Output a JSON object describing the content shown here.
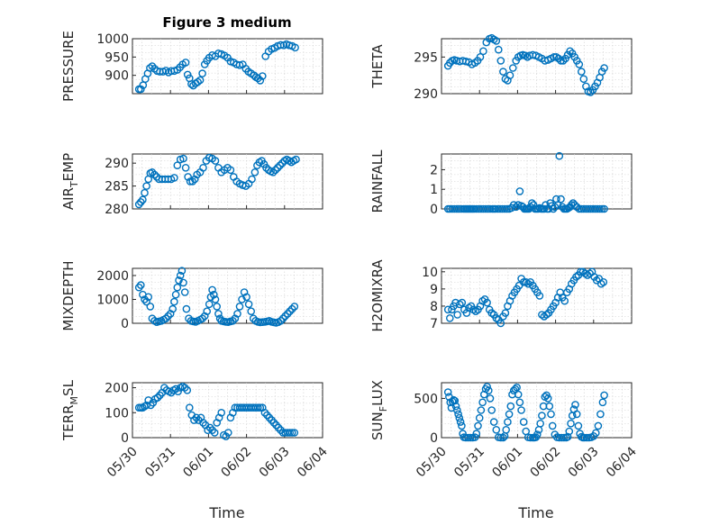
{
  "figure": {
    "title": "Figure 3 medium",
    "marker_color": "#0072BD",
    "grid": "on (dotted, major + minor)",
    "xlabel": "Time"
  },
  "chart_data": [
    {
      "type": "scatter",
      "name": "pressure",
      "title": "Figure 3 medium",
      "ylabel": "PRESSURE",
      "xlabel": "",
      "ylim": [
        850,
        1000
      ],
      "yticks": [
        900,
        950,
        1000
      ],
      "xlim": [
        0,
        5
      ],
      "xticks": [],
      "x": [
        0.17,
        0.22,
        0.28,
        0.34,
        0.4,
        0.46,
        0.52,
        0.58,
        0.65,
        0.72,
        0.8,
        0.88,
        0.95,
        1.02,
        1.1,
        1.18,
        1.25,
        1.32,
        1.4,
        1.45,
        1.5,
        1.55,
        1.6,
        1.66,
        1.72,
        1.78,
        1.84,
        1.9,
        1.96,
        2.02,
        2.1,
        2.18,
        2.26,
        2.34,
        2.42,
        2.5,
        2.58,
        2.66,
        2.74,
        2.82,
        2.9,
        2.98,
        3.05,
        3.12,
        3.2,
        3.25,
        3.3,
        3.36,
        3.42,
        3.5,
        3.58,
        3.66,
        3.74,
        3.82,
        3.9,
        3.98,
        4.05,
        4.12,
        4.2,
        4.28
      ],
      "y": [
        862,
        862,
        873,
        890,
        905,
        920,
        925,
        918,
        912,
        910,
        910,
        913,
        908,
        912,
        912,
        915,
        922,
        930,
        935,
        902,
        892,
        876,
        872,
        878,
        882,
        887,
        905,
        930,
        940,
        948,
        955,
        952,
        960,
        958,
        954,
        948,
        938,
        935,
        930,
        928,
        930,
        918,
        910,
        905,
        900,
        895,
        892,
        886,
        898,
        952,
        965,
        972,
        975,
        980,
        983,
        982,
        985,
        982,
        980,
        976
      ]
    },
    {
      "type": "scatter",
      "name": "theta",
      "title": "",
      "ylabel": "THETA",
      "xlabel": "",
      "ylim": [
        290,
        297.5
      ],
      "yticks": [
        290,
        295
      ],
      "xlim": [
        0,
        5
      ],
      "xticks": [],
      "x": [
        0.17,
        0.22,
        0.28,
        0.34,
        0.4,
        0.48,
        0.56,
        0.64,
        0.72,
        0.8,
        0.88,
        0.95,
        1.02,
        1.1,
        1.18,
        1.26,
        1.32,
        1.38,
        1.44,
        1.5,
        1.56,
        1.62,
        1.68,
        1.74,
        1.8,
        1.88,
        1.96,
        2.02,
        2.08,
        2.14,
        2.2,
        2.26,
        2.32,
        2.4,
        2.48,
        2.56,
        2.64,
        2.72,
        2.8,
        2.88,
        2.96,
        3.02,
        3.08,
        3.14,
        3.2,
        3.26,
        3.32,
        3.38,
        3.44,
        3.5,
        3.56,
        3.62,
        3.68,
        3.74,
        3.8,
        3.86,
        3.92,
        3.98,
        4.04,
        4.1,
        4.16,
        4.22,
        4.28
      ],
      "y": [
        293.8,
        294.2,
        294.5,
        294.6,
        294.5,
        294.4,
        294.5,
        294.4,
        294.3,
        294.0,
        294.2,
        294.5,
        295.0,
        295.8,
        297.0,
        297.5,
        297.6,
        297.4,
        297.2,
        296.0,
        294.5,
        293.0,
        292.0,
        291.8,
        292.5,
        293.5,
        294.5,
        295.0,
        295.2,
        295.3,
        295.2,
        295.0,
        295.2,
        295.3,
        295.2,
        295.0,
        294.8,
        294.5,
        294.6,
        294.8,
        295.0,
        295.0,
        294.8,
        294.5,
        294.5,
        294.8,
        295.3,
        295.8,
        295.5,
        295.0,
        294.5,
        294.0,
        293.0,
        292.0,
        291.0,
        290.3,
        290.2,
        290.5,
        291.0,
        291.5,
        292.2,
        293.0,
        293.5
      ]
    },
    {
      "type": "scatter",
      "name": "air_temp",
      "title": "",
      "ylabel": "AIR_TEMP",
      "xlabel": "",
      "ylim": [
        280,
        292
      ],
      "yticks": [
        280,
        285,
        290
      ],
      "xlim": [
        0,
        5
      ],
      "xticks": [],
      "x": [
        0.17,
        0.22,
        0.27,
        0.32,
        0.37,
        0.42,
        0.47,
        0.52,
        0.58,
        0.64,
        0.7,
        0.78,
        0.86,
        0.94,
        1.02,
        1.1,
        1.18,
        1.26,
        1.34,
        1.4,
        1.46,
        1.52,
        1.58,
        1.64,
        1.7,
        1.78,
        1.86,
        1.94,
        2.02,
        2.1,
        2.18,
        2.26,
        2.34,
        2.42,
        2.5,
        2.58,
        2.66,
        2.74,
        2.82,
        2.9,
        2.98,
        3.06,
        3.14,
        3.22,
        3.28,
        3.34,
        3.4,
        3.46,
        3.52,
        3.58,
        3.64,
        3.7,
        3.76,
        3.82,
        3.88,
        3.94,
        4.0,
        4.06,
        4.12,
        4.18,
        4.24,
        4.3
      ],
      "y": [
        281.0,
        281.5,
        282.0,
        283.5,
        285.0,
        286.5,
        287.8,
        288.0,
        287.5,
        287.0,
        286.5,
        286.5,
        286.5,
        286.5,
        286.5,
        286.8,
        289.5,
        290.8,
        291.0,
        289.0,
        287.0,
        286.0,
        286.0,
        286.5,
        287.5,
        288.0,
        289.0,
        290.5,
        291.2,
        291.0,
        290.5,
        289.0,
        288.0,
        288.5,
        289.0,
        288.5,
        287.0,
        286.0,
        285.5,
        285.2,
        285.0,
        285.5,
        286.5,
        288.0,
        289.5,
        290.2,
        290.5,
        289.8,
        289.0,
        288.5,
        288.2,
        288.0,
        288.5,
        289.0,
        289.5,
        290.0,
        290.5,
        290.8,
        290.5,
        290.2,
        290.5,
        290.8
      ]
    },
    {
      "type": "scatter",
      "name": "rainfall",
      "title": "",
      "ylabel": "RAINFALL",
      "xlabel": "",
      "ylim": [
        0,
        2.8
      ],
      "yticks": [
        0,
        1,
        2
      ],
      "xlim": [
        0,
        5
      ],
      "xticks": [],
      "x": [
        0.17,
        0.22,
        0.28,
        0.34,
        0.4,
        0.46,
        0.52,
        0.58,
        0.62,
        0.66,
        0.7,
        0.74,
        0.78,
        0.82,
        0.86,
        0.92,
        0.98,
        1.04,
        1.1,
        1.16,
        1.22,
        1.28,
        1.34,
        1.38,
        1.42,
        1.48,
        1.54,
        1.6,
        1.66,
        1.72,
        1.78,
        1.84,
        1.9,
        1.96,
        2.02,
        2.06,
        2.1,
        2.14,
        2.18,
        2.22,
        2.26,
        2.3,
        2.34,
        2.38,
        2.42,
        2.46,
        2.5,
        2.54,
        2.58,
        2.62,
        2.66,
        2.7,
        2.74,
        2.78,
        2.82,
        2.86,
        2.9,
        2.94,
        2.98,
        3.02,
        3.06,
        3.1,
        3.14,
        3.18,
        3.22,
        3.26,
        3.3,
        3.34,
        3.38,
        3.42,
        3.46,
        3.5,
        3.56,
        3.62,
        3.68,
        3.74,
        3.8,
        3.86,
        3.92,
        3.98,
        4.04,
        4.1,
        4.16,
        4.22,
        4.28
      ],
      "y": [
        0,
        0,
        0,
        0,
        0,
        0,
        0,
        0,
        0,
        0,
        0,
        0,
        0,
        0,
        0,
        0,
        0,
        0,
        0,
        0,
        0,
        0,
        0,
        0,
        0,
        0,
        0,
        0,
        0,
        0,
        0,
        0.05,
        0.2,
        0.1,
        0.2,
        0.9,
        0.15,
        0.1,
        0,
        0,
        0,
        0,
        0.1,
        0.3,
        0.2,
        0,
        0,
        0,
        0.05,
        0,
        0,
        0,
        0.2,
        0,
        0,
        0.3,
        0.15,
        0,
        0.1,
        0.5,
        0.2,
        2.7,
        0.5,
        0.1,
        0,
        0,
        0,
        0.05,
        0.1,
        0.2,
        0.3,
        0.2,
        0.1,
        0,
        0,
        0,
        0,
        0,
        0,
        0,
        0,
        0,
        0,
        0,
        0
      ]
    },
    {
      "type": "scatter",
      "name": "mixdepth",
      "title": "",
      "ylabel": "MIXDEPTH",
      "xlabel": "",
      "ylim": [
        0,
        2300
      ],
      "yticks": [
        0,
        1000,
        2000
      ],
      "xlim": [
        0,
        5
      ],
      "xticks": [],
      "x": [
        0.17,
        0.22,
        0.27,
        0.32,
        0.37,
        0.42,
        0.47,
        0.52,
        0.58,
        0.64,
        0.7,
        0.76,
        0.82,
        0.88,
        0.94,
        1.0,
        1.06,
        1.1,
        1.14,
        1.18,
        1.22,
        1.26,
        1.3,
        1.34,
        1.38,
        1.42,
        1.48,
        1.54,
        1.6,
        1.66,
        1.72,
        1.78,
        1.84,
        1.9,
        1.96,
        2.02,
        2.06,
        2.1,
        2.14,
        2.18,
        2.22,
        2.26,
        2.3,
        2.34,
        2.4,
        2.46,
        2.52,
        2.58,
        2.64,
        2.7,
        2.76,
        2.82,
        2.88,
        2.94,
        3.0,
        3.06,
        3.12,
        3.18,
        3.24,
        3.3,
        3.36,
        3.42,
        3.48,
        3.54,
        3.6,
        3.66,
        3.72,
        3.78,
        3.84,
        3.9,
        3.96,
        4.02,
        4.08,
        4.14,
        4.2,
        4.26
      ],
      "y": [
        1500,
        1600,
        1200,
        1000,
        900,
        1100,
        700,
        200,
        100,
        50,
        80,
        100,
        150,
        200,
        300,
        400,
        600,
        900,
        1200,
        1500,
        1800,
        2000,
        2200,
        1700,
        1300,
        600,
        200,
        100,
        80,
        60,
        100,
        150,
        200,
        300,
        500,
        800,
        1100,
        1400,
        1200,
        1000,
        700,
        400,
        200,
        100,
        80,
        60,
        50,
        80,
        100,
        200,
        400,
        700,
        1000,
        1300,
        1100,
        800,
        500,
        200,
        100,
        60,
        40,
        50,
        60,
        80,
        100,
        60,
        40,
        20,
        50,
        100,
        200,
        300,
        400,
        500,
        600,
        700
      ]
    },
    {
      "type": "scatter",
      "name": "h2omixra",
      "title": "",
      "ylabel": "H2OMIXRA",
      "xlabel": "",
      "ylim": [
        7,
        10.2
      ],
      "yticks": [
        7,
        8,
        9,
        10
      ],
      "xlim": [
        0,
        5
      ],
      "xticks": [],
      "x": [
        0.17,
        0.22,
        0.27,
        0.32,
        0.37,
        0.42,
        0.48,
        0.54,
        0.6,
        0.66,
        0.72,
        0.78,
        0.84,
        0.9,
        0.96,
        1.02,
        1.08,
        1.14,
        1.2,
        1.26,
        1.32,
        1.38,
        1.44,
        1.5,
        1.56,
        1.62,
        1.68,
        1.74,
        1.8,
        1.86,
        1.92,
        1.98,
        2.04,
        2.1,
        2.16,
        2.22,
        2.28,
        2.34,
        2.4,
        2.46,
        2.52,
        2.58,
        2.64,
        2.7,
        2.76,
        2.82,
        2.88,
        2.94,
        3.0,
        3.06,
        3.12,
        3.18,
        3.24,
        3.3,
        3.36,
        3.42,
        3.48,
        3.54,
        3.6,
        3.66,
        3.72,
        3.78,
        3.84,
        3.9,
        3.96,
        4.02,
        4.08,
        4.14,
        4.2,
        4.26
      ],
      "y": [
        7.8,
        7.3,
        7.8,
        8.0,
        8.2,
        7.5,
        8.1,
        8.2,
        7.8,
        7.6,
        7.9,
        8.0,
        7.8,
        7.7,
        7.8,
        8.0,
        8.3,
        8.4,
        8.2,
        7.8,
        7.6,
        7.5,
        7.3,
        7.2,
        7.0,
        7.4,
        7.6,
        8.0,
        8.3,
        8.6,
        8.8,
        9.0,
        9.2,
        9.6,
        9.4,
        9.4,
        9.3,
        9.4,
        9.2,
        9.0,
        8.8,
        8.6,
        7.5,
        7.4,
        7.5,
        7.6,
        7.8,
        8.0,
        8.2,
        8.5,
        8.8,
        8.5,
        8.3,
        8.8,
        9.0,
        9.3,
        9.5,
        9.7,
        9.8,
        10.0,
        10.0,
        9.9,
        9.8,
        9.9,
        10.0,
        9.7,
        9.5,
        9.6,
        9.3,
        9.4
      ]
    },
    {
      "type": "scatter",
      "name": "terr_msl",
      "title": "",
      "ylabel": "TERR_MSL",
      "xlabel": "Time",
      "ylim": [
        0,
        220
      ],
      "yticks": [
        0,
        100,
        200
      ],
      "xlim": [
        0,
        5
      ],
      "xticks": [
        {
          "at": 0,
          "label": "05/30"
        },
        {
          "at": 1,
          "label": "05/31"
        },
        {
          "at": 2,
          "label": "06/01"
        },
        {
          "at": 3,
          "label": "06/02"
        },
        {
          "at": 4,
          "label": "06/03"
        },
        {
          "at": 5,
          "label": "06/04"
        }
      ],
      "x": [
        0.17,
        0.22,
        0.27,
        0.32,
        0.37,
        0.42,
        0.48,
        0.54,
        0.6,
        0.66,
        0.72,
        0.78,
        0.84,
        0.9,
        0.96,
        1.02,
        1.08,
        1.14,
        1.2,
        1.26,
        1.32,
        1.38,
        1.44,
        1.5,
        1.56,
        1.62,
        1.68,
        1.74,
        1.8,
        1.86,
        1.92,
        1.98,
        2.04,
        2.1,
        2.16,
        2.22,
        2.28,
        2.34,
        2.4,
        2.46,
        2.52,
        2.58,
        2.64,
        2.7,
        2.76,
        2.82,
        2.88,
        2.94,
        3.0,
        3.06,
        3.12,
        3.18,
        3.24,
        3.3,
        3.36,
        3.42,
        3.48,
        3.54,
        3.6,
        3.66,
        3.72,
        3.78,
        3.84,
        3.9,
        3.96,
        4.02,
        4.08,
        4.14,
        4.2,
        4.26
      ],
      "y": [
        120,
        120,
        120,
        125,
        130,
        150,
        130,
        140,
        155,
        160,
        170,
        180,
        200,
        190,
        185,
        180,
        190,
        195,
        185,
        200,
        205,
        200,
        190,
        120,
        90,
        70,
        80,
        70,
        80,
        60,
        50,
        30,
        40,
        30,
        20,
        60,
        80,
        100,
        10,
        5,
        20,
        80,
        100,
        120,
        120,
        120,
        120,
        120,
        120,
        120,
        120,
        120,
        120,
        120,
        120,
        120,
        100,
        90,
        80,
        70,
        60,
        50,
        40,
        30,
        20,
        20,
        20,
        20,
        20,
        20
      ]
    },
    {
      "type": "scatter",
      "name": "sun_flux",
      "title": "",
      "ylabel": "SUN_FLUX",
      "xlabel": "Time",
      "ylim": [
        0,
        700
      ],
      "yticks": [
        0,
        500
      ],
      "xlim": [
        0,
        5
      ],
      "xticks": [
        {
          "at": 0,
          "label": "05/30"
        },
        {
          "at": 1,
          "label": "05/31"
        },
        {
          "at": 2,
          "label": "06/01"
        },
        {
          "at": 3,
          "label": "06/02"
        },
        {
          "at": 4,
          "label": "06/03"
        },
        {
          "at": 5,
          "label": "06/04"
        }
      ],
      "x": [
        0.17,
        0.2,
        0.23,
        0.26,
        0.29,
        0.32,
        0.35,
        0.38,
        0.41,
        0.44,
        0.47,
        0.5,
        0.53,
        0.56,
        0.59,
        0.64,
        0.7,
        0.76,
        0.82,
        0.88,
        0.92,
        0.96,
        1.0,
        1.04,
        1.08,
        1.12,
        1.16,
        1.2,
        1.24,
        1.28,
        1.32,
        1.38,
        1.44,
        1.5,
        1.56,
        1.62,
        1.66,
        1.7,
        1.74,
        1.78,
        1.82,
        1.86,
        1.9,
        1.94,
        1.98,
        2.02,
        2.06,
        2.1,
        2.16,
        2.22,
        2.28,
        2.34,
        2.4,
        2.44,
        2.48,
        2.52,
        2.56,
        2.6,
        2.64,
        2.68,
        2.72,
        2.76,
        2.8,
        2.84,
        2.88,
        2.92,
        2.98,
        3.04,
        3.1,
        3.16,
        3.22,
        3.28,
        3.32,
        3.36,
        3.4,
        3.44,
        3.48,
        3.52,
        3.56,
        3.6,
        3.64,
        3.68,
        3.72,
        3.76,
        3.82,
        3.88,
        3.94,
        4.0,
        4.06,
        4.12,
        4.18,
        4.24,
        4.28
      ],
      "y": [
        580,
        520,
        450,
        380,
        460,
        480,
        470,
        400,
        350,
        300,
        250,
        200,
        150,
        50,
        5,
        0,
        0,
        0,
        0,
        5,
        50,
        150,
        250,
        350,
        450,
        550,
        620,
        650,
        600,
        500,
        350,
        200,
        100,
        5,
        0,
        0,
        20,
        100,
        200,
        300,
        400,
        550,
        600,
        620,
        640,
        550,
        450,
        350,
        200,
        80,
        5,
        0,
        0,
        0,
        5,
        40,
        100,
        180,
        280,
        400,
        520,
        540,
        500,
        400,
        300,
        150,
        40,
        5,
        0,
        0,
        0,
        0,
        10,
        80,
        180,
        280,
        360,
        420,
        300,
        150,
        50,
        10,
        0,
        0,
        0,
        0,
        5,
        20,
        60,
        150,
        300,
        450,
        540
      ]
    }
  ]
}
